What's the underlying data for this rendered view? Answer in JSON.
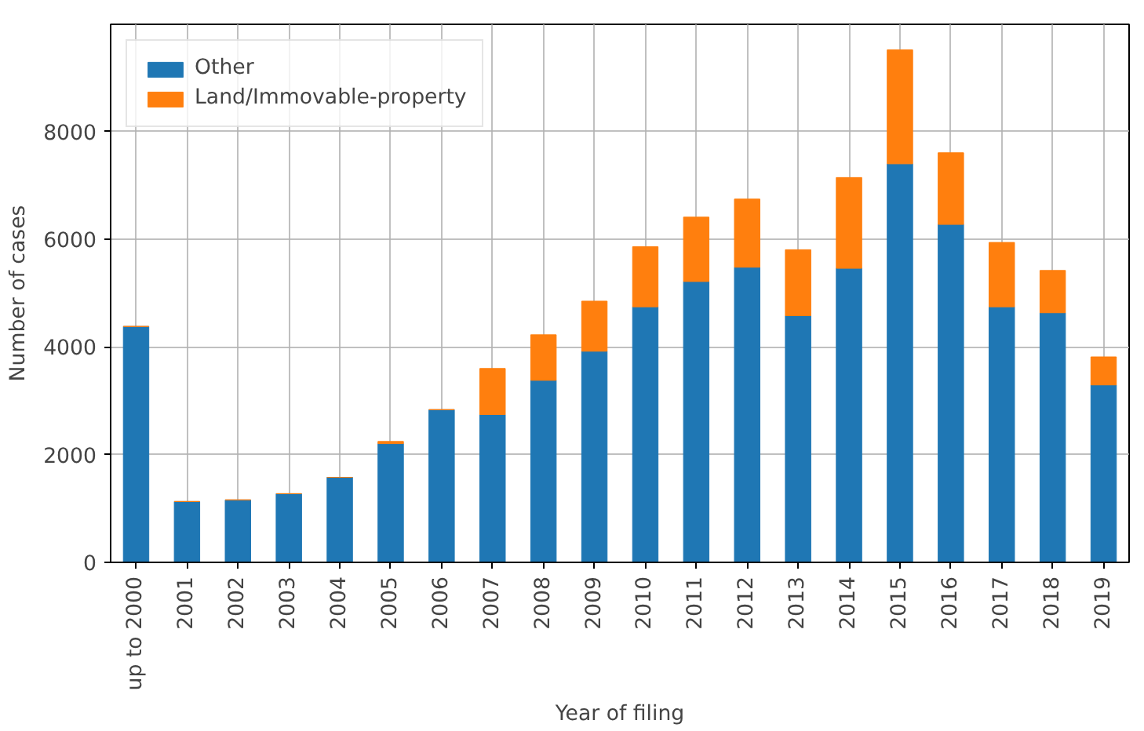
{
  "chart_data": {
    "type": "bar",
    "stacked": true,
    "xlabel": "Year of filing",
    "ylabel": "Number of cases",
    "categories": [
      "up to 2000",
      "2001",
      "2002",
      "2003",
      "2004",
      "2005",
      "2006",
      "2007",
      "2008",
      "2009",
      "2010",
      "2011",
      "2012",
      "2013",
      "2014",
      "2015",
      "2016",
      "2017",
      "2018",
      "2019"
    ],
    "series": [
      {
        "name": "Other",
        "color": "#1f77b4",
        "values": [
          4380,
          1130,
          1160,
          1275,
          1580,
          2205,
          2835,
          2745,
          3380,
          3920,
          4745,
          5215,
          5480,
          4580,
          5460,
          7400,
          6275,
          4745,
          4635,
          3295
        ]
      },
      {
        "name": "Land/Immovable-property",
        "color": "#ff7f0e",
        "values": [
          0,
          0,
          0,
          0,
          0,
          40,
          0,
          855,
          845,
          930,
          1115,
          1195,
          1265,
          1225,
          1685,
          2115,
          1330,
          1195,
          785,
          520
        ]
      }
    ],
    "ylim": [
      0,
      9990
    ],
    "yticks": [
      0,
      2000,
      4000,
      6000,
      8000
    ],
    "grid": true,
    "legend": "top left"
  }
}
